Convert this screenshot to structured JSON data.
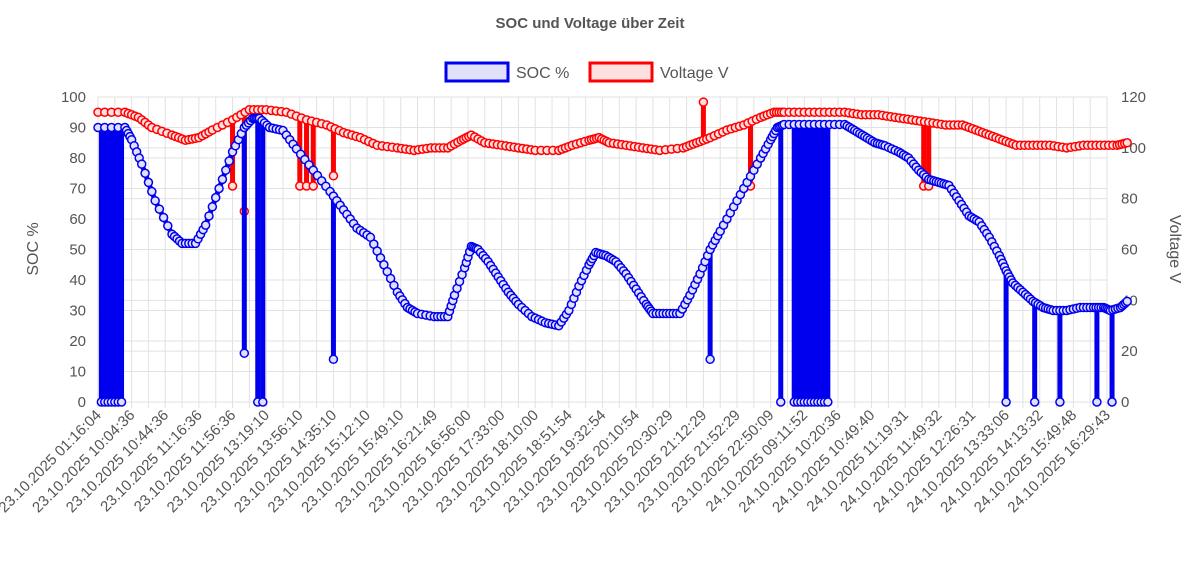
{
  "chart_data": {
    "type": "line",
    "title": "SOC und Voltage über Zeit",
    "legend_position": "top",
    "grid": true,
    "y_left": {
      "label": "SOC %",
      "min": 0,
      "max": 100,
      "ticks": [
        "0",
        "10",
        "20",
        "30",
        "40",
        "50",
        "60",
        "70",
        "80",
        "90",
        "100"
      ]
    },
    "y_right": {
      "label": "Voltage V",
      "min": 0,
      "max": 120,
      "ticks": [
        "0",
        "20",
        "40",
        "60",
        "80",
        "100",
        "120"
      ]
    },
    "x_tick_labels": [
      "23.10.2025 01:16:04",
      "23.10.2025 10:04:36",
      "23.10.2025 10:44:36",
      "23.10.2025 11:16:36",
      "23.10.2025 11:56:36",
      "23.10.2025 13:19:10",
      "23.10.2025 13:56:10",
      "23.10.2025 14:35:10",
      "23.10.2025 15:12:10",
      "23.10.2025 15:49:10",
      "23.10.2025 16:21:49",
      "23.10.2025 16:56:00",
      "23.10.2025 17:33:00",
      "23.10.2025 18:10:00",
      "23.10.2025 18:51:54",
      "23.10.2025 19:32:54",
      "23.10.2025 20:10:54",
      "23.10.2025 20:30:29",
      "23.10.2025 21:12:29",
      "23.10.2025 21:52:29",
      "23.10.2025 22:50:09",
      "24.10.2025 09:11:52",
      "24.10.2025 10:20:36",
      "24.10.2025 10:49:40",
      "24.10.2025 11:19:31",
      "24.10.2025 11:49:32",
      "24.10.2025 12:26:31",
      "24.10.2025 13:33:06",
      "24.10.2025 14:13:32",
      "24.10.2025 15:49:48",
      "24.10.2025 16:29:43"
    ],
    "series": [
      {
        "name": "SOC %",
        "axis": "left",
        "color": "#0000ee",
        "fill": "#e0e0fb",
        "spikes": [
          {
            "x": 0.1,
            "y": 0
          },
          {
            "x": 0.2,
            "y": 0
          },
          {
            "x": 0.3,
            "y": 0
          },
          {
            "x": 0.4,
            "y": 0
          },
          {
            "x": 0.5,
            "y": 0
          },
          {
            "x": 0.6,
            "y": 0
          },
          {
            "x": 0.7,
            "y": 0
          },
          {
            "x": 4.35,
            "y": 16
          },
          {
            "x": 4.75,
            "y": 0
          },
          {
            "x": 4.9,
            "y": 0
          },
          {
            "x": 7.0,
            "y": 14
          },
          {
            "x": 18.2,
            "y": 14
          },
          {
            "x": 20.3,
            "y": 0
          },
          {
            "x": 20.7,
            "y": 0
          },
          {
            "x": 20.8,
            "y": 0
          },
          {
            "x": 20.9,
            "y": 0
          },
          {
            "x": 21.0,
            "y": 0
          },
          {
            "x": 21.1,
            "y": 0
          },
          {
            "x": 21.2,
            "y": 0
          },
          {
            "x": 21.3,
            "y": 0
          },
          {
            "x": 21.4,
            "y": 0
          },
          {
            "x": 21.5,
            "y": 0
          },
          {
            "x": 21.6,
            "y": 0
          },
          {
            "x": 21.7,
            "y": 0
          },
          {
            "x": 27.0,
            "y": 0
          },
          {
            "x": 27.85,
            "y": 0
          },
          {
            "x": 28.6,
            "y": 0
          },
          {
            "x": 29.7,
            "y": 0
          },
          {
            "x": 30.15,
            "y": 0
          }
        ],
        "points": [
          {
            "x": 0.0,
            "y": 90
          },
          {
            "x": 0.8,
            "y": 90
          },
          {
            "x": 1.0,
            "y": 86
          },
          {
            "x": 1.3,
            "y": 78
          },
          {
            "x": 1.7,
            "y": 66
          },
          {
            "x": 2.2,
            "y": 55
          },
          {
            "x": 2.5,
            "y": 52
          },
          {
            "x": 2.9,
            "y": 52
          },
          {
            "x": 3.2,
            "y": 58
          },
          {
            "x": 3.6,
            "y": 70
          },
          {
            "x": 4.0,
            "y": 82
          },
          {
            "x": 4.35,
            "y": 90
          },
          {
            "x": 4.6,
            "y": 93
          },
          {
            "x": 4.8,
            "y": 93
          },
          {
            "x": 5.1,
            "y": 90
          },
          {
            "x": 5.5,
            "y": 89
          },
          {
            "x": 5.9,
            "y": 83
          },
          {
            "x": 6.4,
            "y": 76
          },
          {
            "x": 6.9,
            "y": 69
          },
          {
            "x": 7.3,
            "y": 63
          },
          {
            "x": 7.7,
            "y": 57
          },
          {
            "x": 8.1,
            "y": 54
          },
          {
            "x": 8.5,
            "y": 45
          },
          {
            "x": 8.9,
            "y": 36
          },
          {
            "x": 9.2,
            "y": 31
          },
          {
            "x": 9.5,
            "y": 29
          },
          {
            "x": 10.0,
            "y": 28
          },
          {
            "x": 10.4,
            "y": 28
          },
          {
            "x": 10.6,
            "y": 35
          },
          {
            "x": 10.9,
            "y": 44
          },
          {
            "x": 11.1,
            "y": 51
          },
          {
            "x": 11.3,
            "y": 50
          },
          {
            "x": 11.6,
            "y": 46
          },
          {
            "x": 11.9,
            "y": 41
          },
          {
            "x": 12.2,
            "y": 36
          },
          {
            "x": 12.5,
            "y": 32
          },
          {
            "x": 12.9,
            "y": 28
          },
          {
            "x": 13.3,
            "y": 26
          },
          {
            "x": 13.7,
            "y": 25
          },
          {
            "x": 14.0,
            "y": 30
          },
          {
            "x": 14.3,
            "y": 38
          },
          {
            "x": 14.6,
            "y": 45
          },
          {
            "x": 14.8,
            "y": 49
          },
          {
            "x": 15.1,
            "y": 48
          },
          {
            "x": 15.4,
            "y": 46
          },
          {
            "x": 15.7,
            "y": 42
          },
          {
            "x": 16.0,
            "y": 37
          },
          {
            "x": 16.3,
            "y": 32
          },
          {
            "x": 16.5,
            "y": 29
          },
          {
            "x": 16.9,
            "y": 29
          },
          {
            "x": 17.3,
            "y": 29
          },
          {
            "x": 17.6,
            "y": 35
          },
          {
            "x": 17.9,
            "y": 42
          },
          {
            "x": 18.2,
            "y": 50
          },
          {
            "x": 18.5,
            "y": 56
          },
          {
            "x": 18.9,
            "y": 64
          },
          {
            "x": 19.3,
            "y": 72
          },
          {
            "x": 19.7,
            "y": 80
          },
          {
            "x": 20.0,
            "y": 86
          },
          {
            "x": 20.2,
            "y": 90
          },
          {
            "x": 20.4,
            "y": 91
          },
          {
            "x": 21.0,
            "y": 91
          },
          {
            "x": 21.6,
            "y": 91
          },
          {
            "x": 22.2,
            "y": 91
          },
          {
            "x": 22.5,
            "y": 89
          },
          {
            "x": 22.8,
            "y": 87
          },
          {
            "x": 23.1,
            "y": 85
          },
          {
            "x": 23.4,
            "y": 84
          },
          {
            "x": 23.8,
            "y": 82
          },
          {
            "x": 24.1,
            "y": 80
          },
          {
            "x": 24.4,
            "y": 76
          },
          {
            "x": 24.7,
            "y": 73
          },
          {
            "x": 25.0,
            "y": 72
          },
          {
            "x": 25.3,
            "y": 71
          },
          {
            "x": 25.6,
            "y": 66
          },
          {
            "x": 25.9,
            "y": 61
          },
          {
            "x": 26.2,
            "y": 59
          },
          {
            "x": 26.5,
            "y": 54
          },
          {
            "x": 26.8,
            "y": 48
          },
          {
            "x": 27.0,
            "y": 43
          },
          {
            "x": 27.2,
            "y": 39
          },
          {
            "x": 27.5,
            "y": 36
          },
          {
            "x": 27.8,
            "y": 33
          },
          {
            "x": 28.1,
            "y": 31
          },
          {
            "x": 28.4,
            "y": 30
          },
          {
            "x": 28.8,
            "y": 30
          },
          {
            "x": 29.2,
            "y": 31
          },
          {
            "x": 29.6,
            "y": 31
          },
          {
            "x": 29.9,
            "y": 31
          },
          {
            "x": 30.1,
            "y": 30
          },
          {
            "x": 30.4,
            "y": 31
          },
          {
            "x": 30.6,
            "y": 33
          }
        ]
      },
      {
        "name": "Voltage V",
        "axis": "right",
        "color": "#ff0000",
        "fill": "#fde0e0",
        "spikes": [
          {
            "x": 4.0,
            "y": 85
          },
          {
            "x": 4.35,
            "y": 75
          },
          {
            "x": 6.0,
            "y": 85
          },
          {
            "x": 6.2,
            "y": 85
          },
          {
            "x": 6.4,
            "y": 85
          },
          {
            "x": 7.0,
            "y": 89
          },
          {
            "x": 18.0,
            "y": 118
          },
          {
            "x": 19.4,
            "y": 85
          },
          {
            "x": 24.55,
            "y": 85
          },
          {
            "x": 24.7,
            "y": 85
          }
        ],
        "points": [
          {
            "x": 0.0,
            "y": 114
          },
          {
            "x": 0.8,
            "y": 114
          },
          {
            "x": 1.2,
            "y": 112
          },
          {
            "x": 1.6,
            "y": 108
          },
          {
            "x": 2.2,
            "y": 105
          },
          {
            "x": 2.6,
            "y": 103
          },
          {
            "x": 3.0,
            "y": 104
          },
          {
            "x": 3.4,
            "y": 107
          },
          {
            "x": 4.0,
            "y": 111
          },
          {
            "x": 4.5,
            "y": 115
          },
          {
            "x": 5.0,
            "y": 115
          },
          {
            "x": 5.6,
            "y": 114
          },
          {
            "x": 6.2,
            "y": 111
          },
          {
            "x": 6.8,
            "y": 109
          },
          {
            "x": 7.3,
            "y": 106
          },
          {
            "x": 7.8,
            "y": 104
          },
          {
            "x": 8.3,
            "y": 101
          },
          {
            "x": 8.9,
            "y": 100
          },
          {
            "x": 9.4,
            "y": 99
          },
          {
            "x": 9.9,
            "y": 100
          },
          {
            "x": 10.4,
            "y": 100
          },
          {
            "x": 10.8,
            "y": 103
          },
          {
            "x": 11.1,
            "y": 105
          },
          {
            "x": 11.5,
            "y": 102
          },
          {
            "x": 12.0,
            "y": 101
          },
          {
            "x": 12.5,
            "y": 100
          },
          {
            "x": 13.0,
            "y": 99
          },
          {
            "x": 13.7,
            "y": 99
          },
          {
            "x": 14.1,
            "y": 101
          },
          {
            "x": 14.6,
            "y": 103
          },
          {
            "x": 14.9,
            "y": 104
          },
          {
            "x": 15.2,
            "y": 102
          },
          {
            "x": 15.7,
            "y": 101
          },
          {
            "x": 16.2,
            "y": 100
          },
          {
            "x": 16.7,
            "y": 99
          },
          {
            "x": 17.4,
            "y": 100
          },
          {
            "x": 17.8,
            "y": 102
          },
          {
            "x": 18.2,
            "y": 104
          },
          {
            "x": 18.7,
            "y": 107
          },
          {
            "x": 19.2,
            "y": 109
          },
          {
            "x": 19.7,
            "y": 112
          },
          {
            "x": 20.1,
            "y": 114
          },
          {
            "x": 20.4,
            "y": 114
          },
          {
            "x": 21.0,
            "y": 114
          },
          {
            "x": 21.6,
            "y": 114
          },
          {
            "x": 22.2,
            "y": 114
          },
          {
            "x": 22.7,
            "y": 113
          },
          {
            "x": 23.2,
            "y": 113
          },
          {
            "x": 23.7,
            "y": 112
          },
          {
            "x": 24.2,
            "y": 111
          },
          {
            "x": 24.7,
            "y": 110
          },
          {
            "x": 25.2,
            "y": 109
          },
          {
            "x": 25.7,
            "y": 109
          },
          {
            "x": 26.1,
            "y": 107
          },
          {
            "x": 26.5,
            "y": 105
          },
          {
            "x": 26.9,
            "y": 103
          },
          {
            "x": 27.3,
            "y": 101
          },
          {
            "x": 27.8,
            "y": 101
          },
          {
            "x": 28.3,
            "y": 101
          },
          {
            "x": 28.8,
            "y": 100
          },
          {
            "x": 29.3,
            "y": 101
          },
          {
            "x": 29.8,
            "y": 101
          },
          {
            "x": 30.3,
            "y": 101
          },
          {
            "x": 30.6,
            "y": 102
          }
        ]
      }
    ]
  }
}
